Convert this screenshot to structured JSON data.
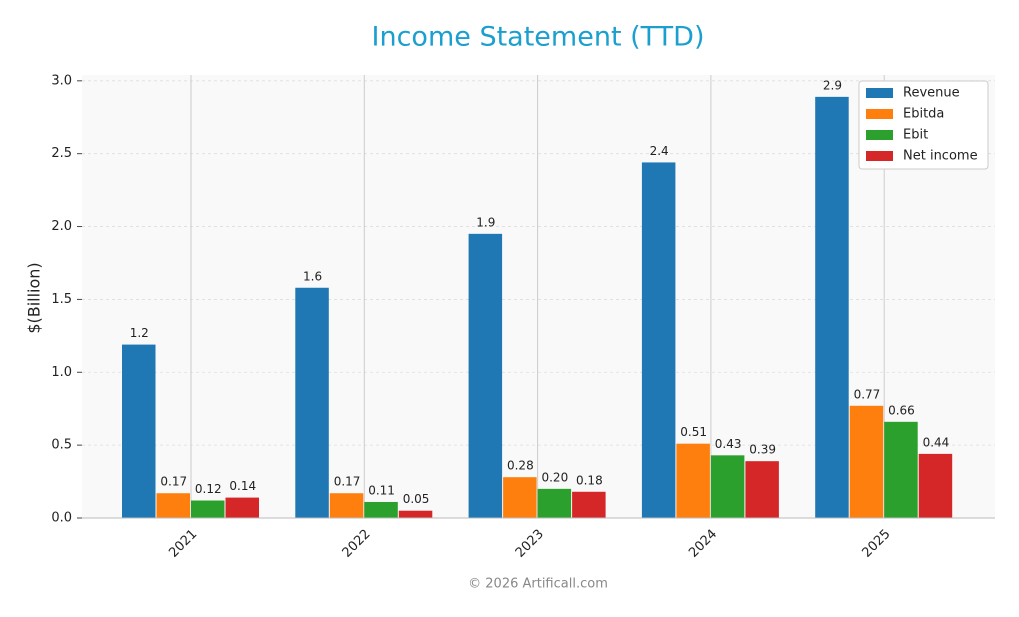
{
  "chart_data": {
    "type": "bar",
    "title": "Income Statement (TTD)",
    "ylabel": "$(Billion)",
    "footer": "© 2026 Artificall.com",
    "categories": [
      "2021",
      "2022",
      "2023",
      "2024",
      "2025"
    ],
    "series": [
      {
        "name": "Revenue",
        "color": "#1f77b4",
        "values": [
          1.19,
          1.58,
          1.95,
          2.44,
          2.89
        ],
        "value_labels": [
          "1.2",
          "1.6",
          "1.9",
          "2.4",
          "2.9"
        ]
      },
      {
        "name": "Ebitda",
        "color": "#ff7f0e",
        "values": [
          0.17,
          0.17,
          0.28,
          0.51,
          0.77
        ],
        "value_labels": [
          "0.17",
          "0.17",
          "0.28",
          "0.51",
          "0.77"
        ]
      },
      {
        "name": "Ebit",
        "color": "#2ca02c",
        "values": [
          0.12,
          0.11,
          0.2,
          0.43,
          0.66
        ],
        "value_labels": [
          "0.12",
          "0.11",
          "0.20",
          "0.43",
          "0.66"
        ]
      },
      {
        "name": "Net income",
        "color": "#d62728",
        "values": [
          0.14,
          0.05,
          0.18,
          0.39,
          0.44
        ],
        "value_labels": [
          "0.14",
          "0.05",
          "0.18",
          "0.39",
          "0.44"
        ]
      }
    ],
    "ylim": [
      0,
      3.04
    ],
    "yticks": [
      {
        "value": 0,
        "label": "0.0"
      },
      0.5,
      {
        "value": 1,
        "label": "1.0"
      },
      1.5,
      {
        "value": 2,
        "label": "2.0"
      },
      2.5,
      {
        "value": 3,
        "label": "3.0"
      }
    ],
    "grid": true,
    "legend": "upper right"
  }
}
